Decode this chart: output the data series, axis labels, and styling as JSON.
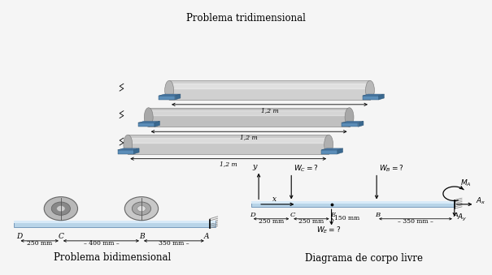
{
  "bg_color": "#f5f5f5",
  "panel_bg": "#dce9f5",
  "title_3d": "Problema tridimensional",
  "title_2d": "Problema bidimensional",
  "title_fbd": "Diagrama de corpo livre",
  "label_12m_1": "1,2 m",
  "label_12m_2": "1,2 m",
  "label_12m_3": "1,2 m"
}
